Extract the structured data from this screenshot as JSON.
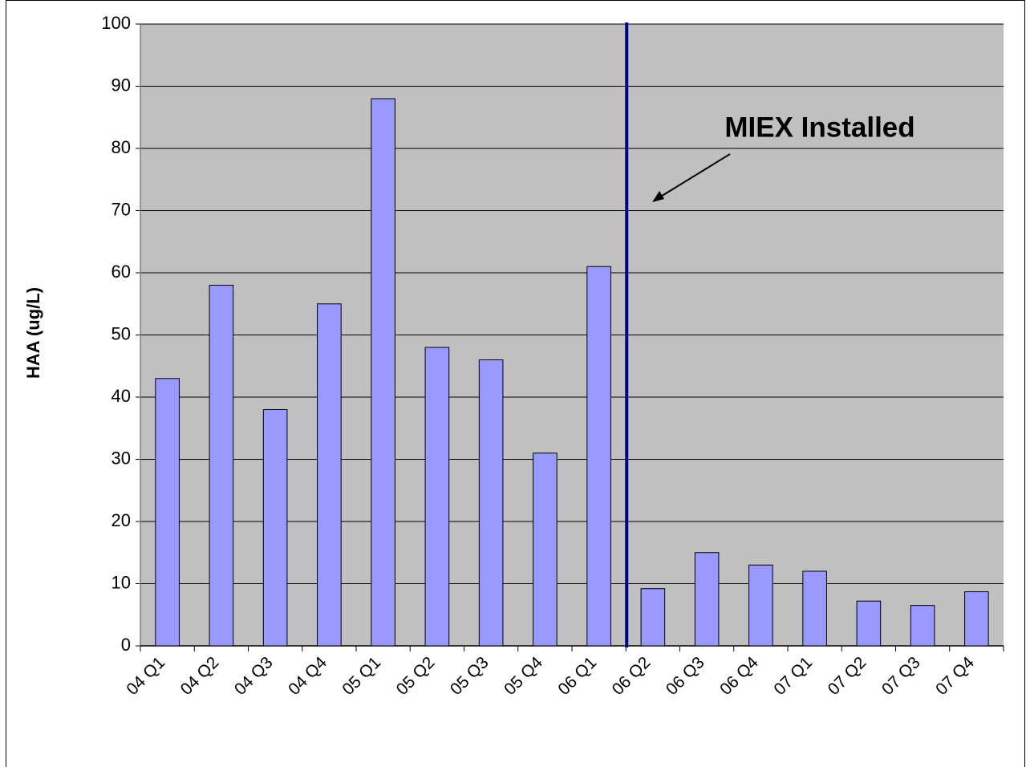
{
  "chart_data": {
    "type": "bar",
    "ylabel": "HAA (ug/L)",
    "categories": [
      "04 Q1",
      "04 Q2",
      "04 Q3",
      "04 Q4",
      "05 Q1",
      "05 Q2",
      "05 Q3",
      "05 Q4",
      "06 Q1",
      "06 Q2",
      "06 Q3",
      "06 Q4",
      "07 Q1",
      "07 Q2",
      "07 Q3",
      "07 Q4"
    ],
    "values": [
      43,
      58,
      38,
      55,
      88,
      48,
      46,
      31,
      61,
      9.2,
      15,
      13,
      12,
      7.2,
      6.5,
      8.7
    ],
    "color": "#9999ff",
    "ylim": [
      0,
      100
    ],
    "yticks": [
      0,
      10,
      20,
      30,
      40,
      50,
      60,
      70,
      80,
      90,
      100
    ],
    "grid": true,
    "annotation": {
      "text": "MIEX Installed",
      "after_category": "06 Q1",
      "color": "#000080"
    }
  }
}
